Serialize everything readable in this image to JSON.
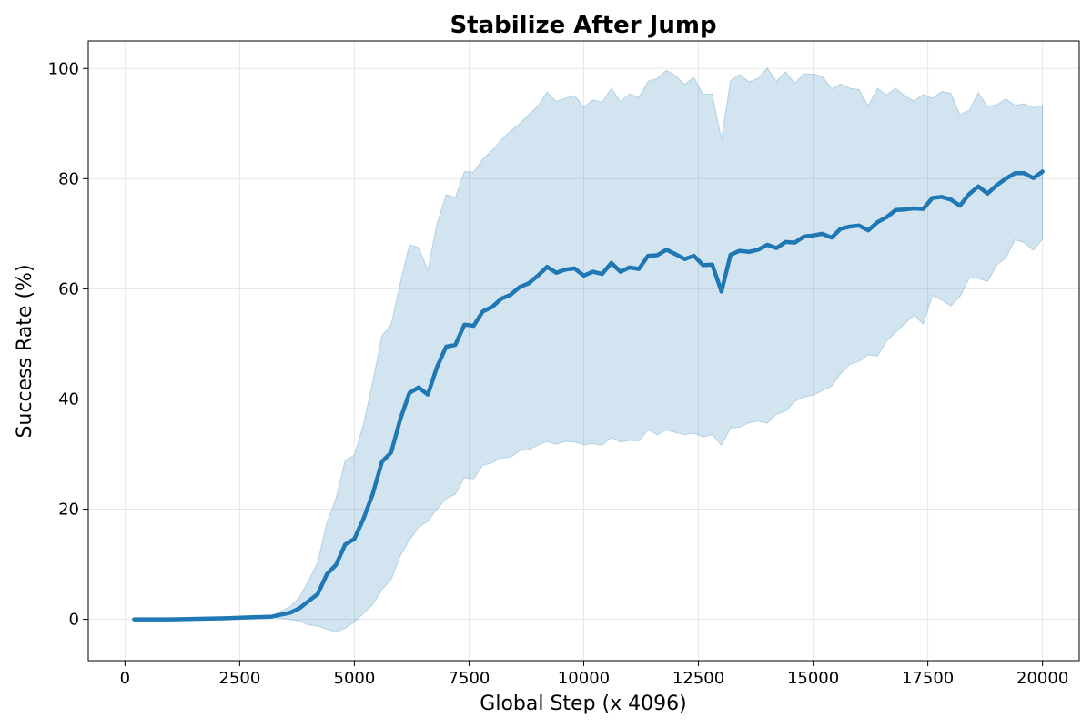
{
  "chart_data": {
    "type": "line",
    "title": "Stabilize After Jump",
    "xlabel": "Global Step (x 4096)",
    "ylabel": "Success Rate (%)",
    "xlim": [
      -800,
      20800
    ],
    "ylim": [
      -7.5,
      105
    ],
    "xticks": [
      0,
      2500,
      5000,
      7500,
      10000,
      12500,
      15000,
      17500,
      20000
    ],
    "xtick_labels": [
      "0",
      "2500",
      "5000",
      "7500",
      "10000",
      "12500",
      "15000",
      "17500",
      "20000"
    ],
    "yticks": [
      0,
      20,
      40,
      60,
      80,
      100
    ],
    "ytick_labels": [
      "0",
      "20",
      "40",
      "60",
      "80",
      "100"
    ],
    "grid": true,
    "colors": {
      "line": "#1f77b4",
      "band": "#1f77b4"
    },
    "series": [
      {
        "x": [
          200,
          1000,
          1600,
          2200,
          2800,
          3200,
          3600,
          3800,
          4000,
          4200,
          4400,
          4600,
          4800,
          5000,
          5200,
          5400,
          5600,
          5800,
          6000,
          6200,
          6400,
          6600,
          6800,
          7000,
          7200,
          7400,
          7600,
          7800,
          8000,
          8200,
          8400,
          8600,
          8800,
          9000,
          9200,
          9400,
          9600,
          9800,
          10000,
          10200,
          10400,
          10600,
          10800,
          11000,
          11200,
          11400,
          11600,
          11800,
          12000,
          12200,
          12400,
          12600,
          12800,
          13000,
          13200,
          13400,
          13600,
          13800,
          14000,
          14200,
          14400,
          14600,
          14800,
          15000,
          15200,
          15400,
          15600,
          15800,
          16000,
          16200,
          16400,
          16600,
          16800,
          17000,
          17200,
          17400,
          17600,
          17800,
          18000,
          18200,
          18400,
          18600,
          18800,
          19000,
          19200,
          19400,
          19600,
          19800,
          20000
        ],
        "y": [
          0,
          0,
          0.1,
          0.2,
          0.4,
          0.5,
          1.2,
          2.0,
          3.3,
          4.6,
          8.2,
          9.9,
          13.6,
          14.6,
          18.3,
          22.8,
          28.6,
          30.3,
          36.3,
          41.1,
          42.1,
          40.8,
          45.8,
          49.5,
          49.8,
          53.5,
          53.3,
          55.9,
          56.7,
          58.2,
          58.9,
          60.3,
          61.0,
          62.4,
          64.0,
          62.9,
          63.5,
          63.7,
          62.4,
          63.1,
          62.7,
          64.7,
          63.1,
          63.9,
          63.6,
          66.0,
          66.1,
          67.1,
          66.3,
          65.4,
          66.0,
          64.3,
          64.4,
          59.5,
          66.2,
          66.9,
          66.7,
          67.1,
          68.0,
          67.4,
          68.5,
          68.4,
          69.5,
          69.7,
          70.0,
          69.3,
          70.9,
          71.3,
          71.5,
          70.6,
          72.1,
          73.0,
          74.3,
          74.4,
          74.6,
          74.5,
          76.5,
          76.7,
          76.2,
          75.1,
          77.2,
          78.6,
          77.3,
          78.8,
          80.0,
          81.0,
          81.0,
          80.1,
          81.3
        ],
        "y_upper": [
          0,
          0,
          0.1,
          0.2,
          0.5,
          0.7,
          2.3,
          4.0,
          7.0,
          10.3,
          17.6,
          22.0,
          28.9,
          29.8,
          35.5,
          43.1,
          51.5,
          53.5,
          61.0,
          68.0,
          67.5,
          63.4,
          71.8,
          77.1,
          76.6,
          81.3,
          81.2,
          83.6,
          85.1,
          87.0,
          88.6,
          90.0,
          91.6,
          93.2,
          95.7,
          94.0,
          94.6,
          95.1,
          93.0,
          94.3,
          93.9,
          96.4,
          94.0,
          95.4,
          94.7,
          97.7,
          98.2,
          99.7,
          98.7,
          97.1,
          98.4,
          95.3,
          95.4,
          87.1,
          97.8,
          98.9,
          97.6,
          98.2,
          100.1,
          97.7,
          99.4,
          97.3,
          99.0,
          99.0,
          98.6,
          96.3,
          97.2,
          96.4,
          96.2,
          93.2,
          96.4,
          95.2,
          96.4,
          95.0,
          94.1,
          95.3,
          94.6,
          95.8,
          95.5,
          91.6,
          92.4,
          95.6,
          93.1,
          93.4,
          94.5,
          93.3,
          93.6,
          92.9,
          93.3
        ],
        "y_lower": [
          0,
          0,
          0.1,
          0.2,
          0.3,
          0.3,
          0.0,
          -0.3,
          -1.0,
          -1.2,
          -1.8,
          -2.3,
          -1.6,
          -0.5,
          1.1,
          2.7,
          5.4,
          7.2,
          11.5,
          14.4,
          16.7,
          17.8,
          20.0,
          21.9,
          22.7,
          25.7,
          25.5,
          28.0,
          28.4,
          29.3,
          29.4,
          30.6,
          30.8,
          31.6,
          32.3,
          31.8,
          32.3,
          32.2,
          31.7,
          31.9,
          31.6,
          33.0,
          32.2,
          32.5,
          32.4,
          34.4,
          33.5,
          34.4,
          33.9,
          33.5,
          33.8,
          33.1,
          33.5,
          31.6,
          34.7,
          34.9,
          35.7,
          36.0,
          35.6,
          37.2,
          37.8,
          39.6,
          40.4,
          40.7,
          41.5,
          42.3,
          44.6,
          46.3,
          46.8,
          48.0,
          47.8,
          50.5,
          52.1,
          53.7,
          55.2,
          53.6,
          58.8,
          58.0,
          56.9,
          58.6,
          61.9,
          61.9,
          61.3,
          64.3,
          65.6,
          68.9,
          68.4,
          67.0,
          69.0
        ]
      }
    ]
  }
}
